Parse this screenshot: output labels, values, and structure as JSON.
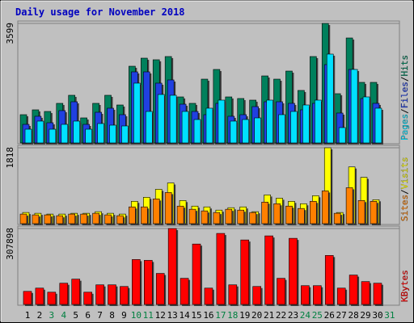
{
  "chart_data": [
    {
      "type": "bar",
      "title": "Daily usage for November 2018",
      "legend_separator": "/",
      "ylim": [
        0,
        3599
      ],
      "yticks": [
        3599
      ],
      "series": [
        {
          "name": "Hits",
          "color": "#00805c",
          "values": [
            851,
            997,
            948,
            1192,
            1435,
            754,
            1192,
            1435,
            1143,
            2310,
            2553,
            2505,
            2602,
            1386,
            1192,
            1921,
            2213,
            1386,
            1338,
            1289,
            2018,
            1921,
            2164,
            1581,
            2602,
            3599,
            1483,
            3161,
            1824,
            1824,
            null
          ]
        },
        {
          "name": "Files",
          "color": "#2040e0",
          "values": [
            559,
            803,
            608,
            973,
            1240,
            559,
            924,
            1046,
            851,
            2140,
            2140,
            1800,
            1897,
            1167,
            948,
            851,
            1192,
            803,
            851,
            1094,
            1240,
            1240,
            1192,
            997,
            1192,
            2359,
            900,
            2213,
            1338,
            1192,
            null
          ]
        },
        {
          "name": "Pages",
          "color": "#00e0ff",
          "values": [
            413,
            657,
            413,
            559,
            657,
            413,
            584,
            535,
            511,
            1800,
            948,
            1459,
            1435,
            948,
            705,
            1046,
            1289,
            657,
            705,
            754,
            1289,
            851,
            948,
            1143,
            1289,
            2675,
            462,
            2213,
            1386,
            1046,
            null
          ]
        }
      ]
    },
    {
      "type": "bar",
      "legend_separator": "/",
      "ylim": [
        0,
        1818
      ],
      "yticks": [
        1818
      ],
      "series": [
        {
          "name": "Visits",
          "color": "#ffff00",
          "values": [
            268,
            249,
            230,
            230,
            249,
            249,
            287,
            249,
            230,
            536,
            632,
            823,
            976,
            555,
            421,
            402,
            325,
            383,
            402,
            287,
            689,
            612,
            536,
            478,
            670,
            1818,
            268,
            1359,
            1110,
            574,
            null
          ]
        },
        {
          "name": "Sites",
          "color": "#ff8000",
          "values": [
            230,
            211,
            211,
            191,
            230,
            230,
            249,
            211,
            191,
            402,
            402,
            593,
            746,
            421,
            345,
            306,
            268,
            345,
            325,
            268,
            517,
            478,
            421,
            364,
            536,
            785,
            249,
            861,
            555,
            536,
            null
          ]
        }
      ]
    },
    {
      "type": "bar",
      "ylim": [
        0,
        307898
      ],
      "yticks": [
        307898
      ],
      "series": [
        {
          "name": "KBytes",
          "color": "#ff0000",
          "values": [
            52976,
            66220,
            49665,
            86086,
            102641,
            49665,
            79464,
            79464,
            72842,
            182105,
            178794,
            125818,
            307898,
            105952,
            245014,
            66220,
            288057,
            79464,
            261569,
            72842,
            278124,
            105952,
            268191,
            76153,
            76153,
            198660,
            66220,
            119196,
            92708,
            86086,
            null
          ]
        }
      ],
      "categories": [
        "1",
        "2",
        "3",
        "4",
        "5",
        "6",
        "7",
        "8",
        "9",
        "10",
        "11",
        "12",
        "13",
        "14",
        "15",
        "16",
        "17",
        "18",
        "19",
        "20",
        "21",
        "22",
        "23",
        "24",
        "25",
        "26",
        "27",
        "28",
        "29",
        "30",
        "31"
      ],
      "category_colors": [
        "#000000",
        "#000000",
        "#008040",
        "#008040",
        "#000000",
        "#000000",
        "#000000",
        "#000000",
        "#000000",
        "#008040",
        "#008040",
        "#000000",
        "#000000",
        "#000000",
        "#000000",
        "#000000",
        "#008040",
        "#008040",
        "#000000",
        "#000000",
        "#000000",
        "#000000",
        "#000000",
        "#008040",
        "#008040",
        "#000000",
        "#000000",
        "#000000",
        "#000000",
        "#000000",
        "#008040"
      ]
    }
  ]
}
